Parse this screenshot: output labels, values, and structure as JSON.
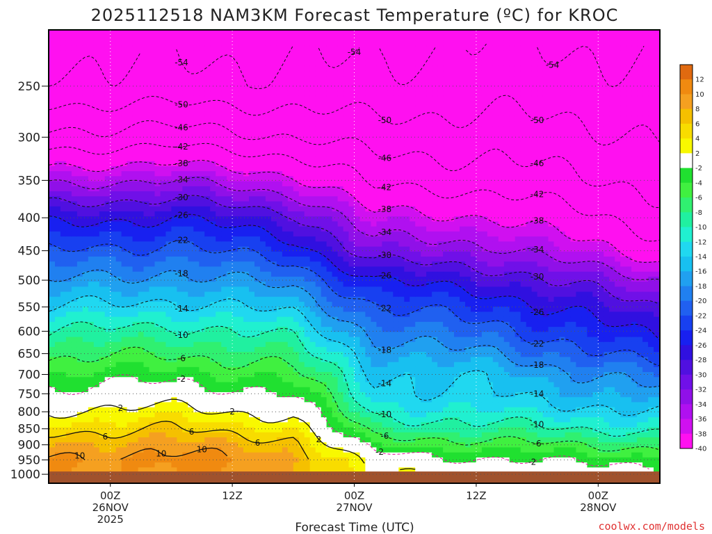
{
  "chart_data": {
    "type": "heatmap",
    "title": "2025112518 NAM3KM Forecast Temperature (ºC) for KROC",
    "xlabel": "Forecast Time (UTC)",
    "ylabel": "",
    "y_scale": "pressure (log)",
    "ylim": [
      1000,
      200
    ],
    "y_ticks": [
      250,
      300,
      350,
      400,
      450,
      500,
      550,
      600,
      650,
      700,
      750,
      800,
      850,
      900,
      950,
      1000
    ],
    "x_ticks": [
      {
        "label": "00Z",
        "sub": "26NOV",
        "sub2": "2025",
        "hour": 6
      },
      {
        "label": "12Z",
        "sub": "",
        "sub2": "",
        "hour": 18
      },
      {
        "label": "00Z",
        "sub": "27NOV",
        "sub2": "",
        "hour": 30
      },
      {
        "label": "12Z",
        "sub": "",
        "sub2": "",
        "hour": 42
      },
      {
        "label": "00Z",
        "sub": "28NOV",
        "sub2": "",
        "hour": 54
      }
    ],
    "xlim_hours": [
      0,
      60
    ],
    "grid": true,
    "legend": "colorbar right",
    "colorbar": {
      "ticks": [
        "12",
        "10",
        "8",
        "6",
        "4",
        "2",
        "-2",
        "-4",
        "-6",
        "-8",
        "-10",
        "-12",
        "-14",
        "-16",
        "-18",
        "-20",
        "-22",
        "-24",
        "-26",
        "-28",
        "-30",
        "-32",
        "-34",
        "-36",
        "-38",
        "-40"
      ],
      "colors": [
        "#e06a10",
        "#f08a10",
        "#f5a020",
        "#f5c000",
        "#f8dc00",
        "#f8f800",
        "#ffffff",
        "#20e030",
        "#40f040",
        "#30f070",
        "#20f0a0",
        "#20f0d0",
        "#20d8f0",
        "#18c0f0",
        "#20a0f0",
        "#2080f0",
        "#2060f0",
        "#1840f0",
        "#1820f0",
        "#3010e0",
        "#5010e0",
        "#7010e8",
        "#9010e8",
        "#b010f0",
        "#d010f0",
        "#ff10f0"
      ]
    },
    "temperature_profiles": [
      {
        "hour": 0,
        "t_at_pressure": {
          "1000": 9,
          "950": 10,
          "900": 8,
          "850": 5,
          "800": 2,
          "750": -1,
          "700": -4,
          "650": -7,
          "600": -10,
          "550": -14,
          "500": -18,
          "450": -22,
          "400": -27,
          "350": -35,
          "300": -45,
          "250": -53
        }
      },
      {
        "hour": 12,
        "t_at_pressure": {
          "1000": 10,
          "950": 11,
          "900": 9,
          "850": 6,
          "800": 3,
          "750": 0,
          "700": -3,
          "650": -6,
          "600": -9,
          "550": -13,
          "500": -17,
          "450": -21,
          "400": -26,
          "350": -34,
          "300": -44,
          "250": -53
        }
      },
      {
        "hour": 24,
        "t_at_pressure": {
          "1000": 9,
          "950": 9,
          "900": 7,
          "850": 4,
          "800": 1,
          "750": -2,
          "700": -5,
          "650": -8,
          "600": -11,
          "550": -15,
          "500": -19,
          "450": -24,
          "400": -29,
          "350": -37,
          "300": -46,
          "250": -53
        }
      },
      {
        "hour": 32,
        "t_at_pressure": {
          "1000": 2,
          "950": 0,
          "900": -4,
          "850": -8,
          "800": -11,
          "750": -13,
          "700": -14,
          "650": -16,
          "600": -19,
          "550": -22,
          "500": -26,
          "450": -32,
          "400": -37,
          "350": -43,
          "300": -48,
          "250": -53
        }
      },
      {
        "hour": 44,
        "t_at_pressure": {
          "1000": 1,
          "950": -2,
          "900": -5,
          "850": -9,
          "800": -12,
          "750": -14,
          "700": -15,
          "650": -18,
          "600": -21,
          "550": -24,
          "500": -28,
          "450": -33,
          "400": -38,
          "350": -44,
          "300": -48,
          "250": -52
        }
      },
      {
        "hour": 60,
        "t_at_pressure": {
          "1000": 0,
          "950": -3,
          "900": -7,
          "850": -11,
          "800": -14,
          "750": -17,
          "700": -20,
          "650": -24,
          "600": -27,
          "550": -30,
          "500": -34,
          "450": -40,
          "400": -44,
          "350": -47,
          "300": -50,
          "250": -53
        }
      }
    ],
    "contour_labels": [
      "-50",
      "-54",
      "-50",
      "-42",
      "-46",
      "-46",
      "-38",
      "-34",
      "-38",
      "-38",
      "-26",
      "-30",
      "-34",
      "-30",
      "-22",
      "-22",
      "-26",
      "-18",
      "-18",
      "-22",
      "-14",
      "-10",
      "-10",
      "-14",
      "-14",
      "-18",
      "-6",
      "-6",
      "-2",
      "2",
      "2",
      "-14",
      "-10",
      "-6",
      "-2",
      "2",
      "6",
      "10"
    ],
    "credit": "coolwx.com/models"
  }
}
